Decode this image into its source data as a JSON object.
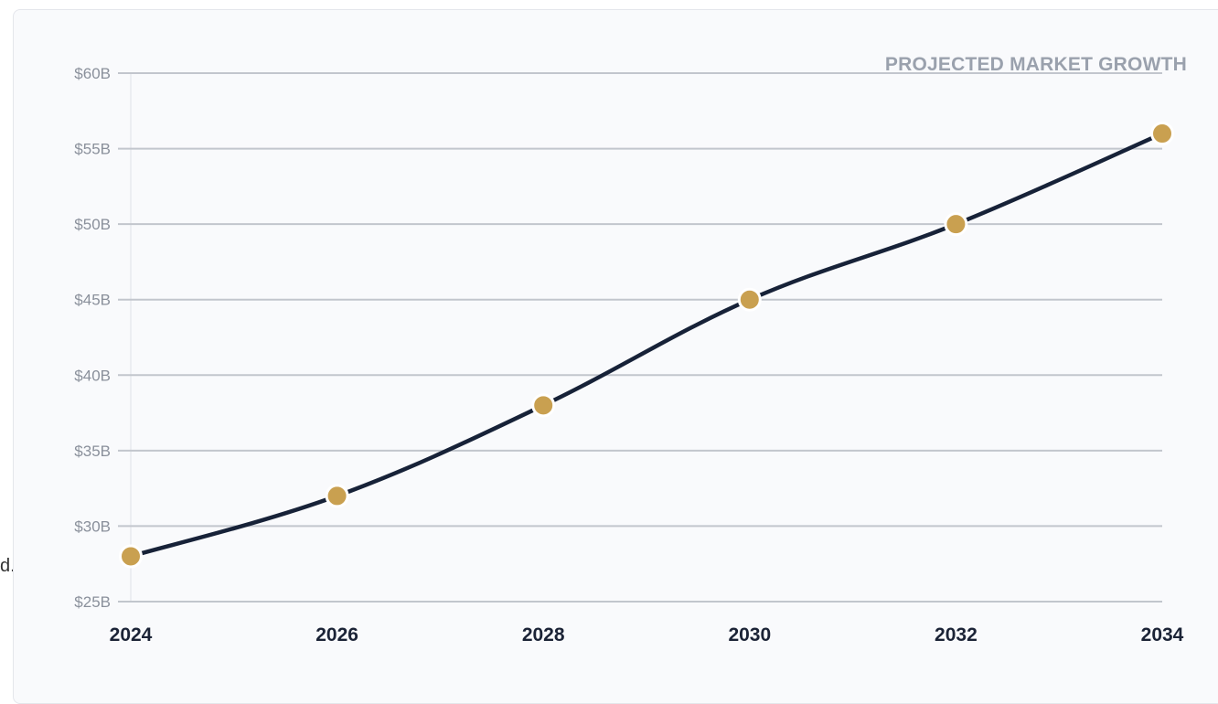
{
  "stray_text": "d.",
  "chart_data": {
    "type": "line",
    "title": "PROJECTED MARKET GROWTH",
    "xlabel": "",
    "ylabel": "",
    "x": [
      "2024",
      "2026",
      "2028",
      "2030",
      "2032",
      "2034"
    ],
    "series": [
      {
        "values": [
          28,
          32,
          38,
          45,
          50,
          56
        ]
      }
    ],
    "ylim": [
      25,
      60
    ],
    "yticks": [
      25,
      30,
      35,
      40,
      45,
      50,
      55,
      60
    ],
    "ytick_labels": [
      "$25B",
      "$30B",
      "$35B",
      "$40B",
      "$45B",
      "$50B",
      "$55B",
      "$60B"
    ],
    "grid": "horizontal",
    "legend": "none",
    "colors": {
      "line": "#172238",
      "marker": "#c9a050",
      "marker_ring": "#ffffff",
      "grid": "#c2c6cd",
      "title": "#9aa1ad"
    }
  }
}
